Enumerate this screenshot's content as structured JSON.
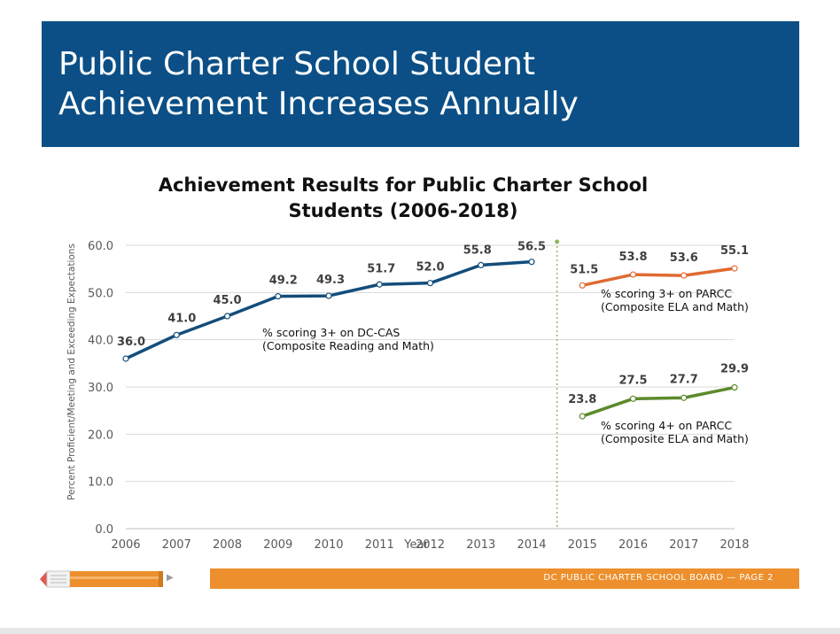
{
  "slide": {
    "title_line1": "Public Charter School Student",
    "title_line2": "Achievement Increases Annually",
    "footer_text": "DC PUBLIC CHARTER SCHOOL BOARD — PAGE 2"
  },
  "colors": {
    "banner": "#0b4f86",
    "dccas": "#134d7b",
    "parcc3": "#e06a32",
    "parcc4": "#5c8a2c",
    "footer": "#ec8f2c",
    "divider": "#8fb860"
  },
  "icons": [
    "pencil-icon",
    "arrow-right-icon"
  ],
  "chart_data": {
    "type": "line",
    "title_line1": "Achievement Results for Public Charter School",
    "title_line2": "Students (2006-2018)",
    "xlabel": "Year",
    "ylabel": "Percent Proficient/Meeting and Exceeding Expectations",
    "categories": [
      "2006",
      "2007",
      "2008",
      "2009",
      "2010",
      "2011",
      "2012",
      "2013",
      "2014",
      "2015",
      "2016",
      "2017",
      "2018"
    ],
    "y_ticks": [
      "0.0",
      "10.0",
      "20.0",
      "30.0",
      "40.0",
      "50.0",
      "60.0"
    ],
    "ylim": [
      0,
      60
    ],
    "grid": true,
    "divider_between": [
      "2014",
      "2015"
    ],
    "series": [
      {
        "key": "dccas",
        "label_line1": "% scoring 3+ on DC-CAS",
        "label_line2": "(Composite Reading and Math)",
        "x": [
          "2006",
          "2007",
          "2008",
          "2009",
          "2010",
          "2011",
          "2012",
          "2013",
          "2014"
        ],
        "values": [
          36.0,
          41.0,
          45.0,
          49.2,
          49.3,
          51.7,
          52.0,
          55.8,
          56.5
        ],
        "value_labels": [
          "36.0",
          "41.0",
          "45.0",
          "49.2",
          "49.3",
          "51.7",
          "52.0",
          "55.8",
          "56.5"
        ]
      },
      {
        "key": "parcc3",
        "label_line1": "% scoring 3+ on PARCC",
        "label_line2": "(Composite ELA and Math)",
        "x": [
          "2015",
          "2016",
          "2017",
          "2018"
        ],
        "values": [
          51.5,
          53.8,
          53.6,
          55.1
        ],
        "value_labels": [
          "51.5",
          "53.8",
          "53.6",
          "55.1"
        ]
      },
      {
        "key": "parcc4",
        "label_line1": "% scoring 4+ on PARCC",
        "label_line2": "(Composite ELA and Math)",
        "x": [
          "2015",
          "2016",
          "2017",
          "2018"
        ],
        "values": [
          23.8,
          27.5,
          27.7,
          29.9
        ],
        "value_labels": [
          "23.8",
          "27.5",
          "27.7",
          "29.9"
        ]
      }
    ]
  }
}
